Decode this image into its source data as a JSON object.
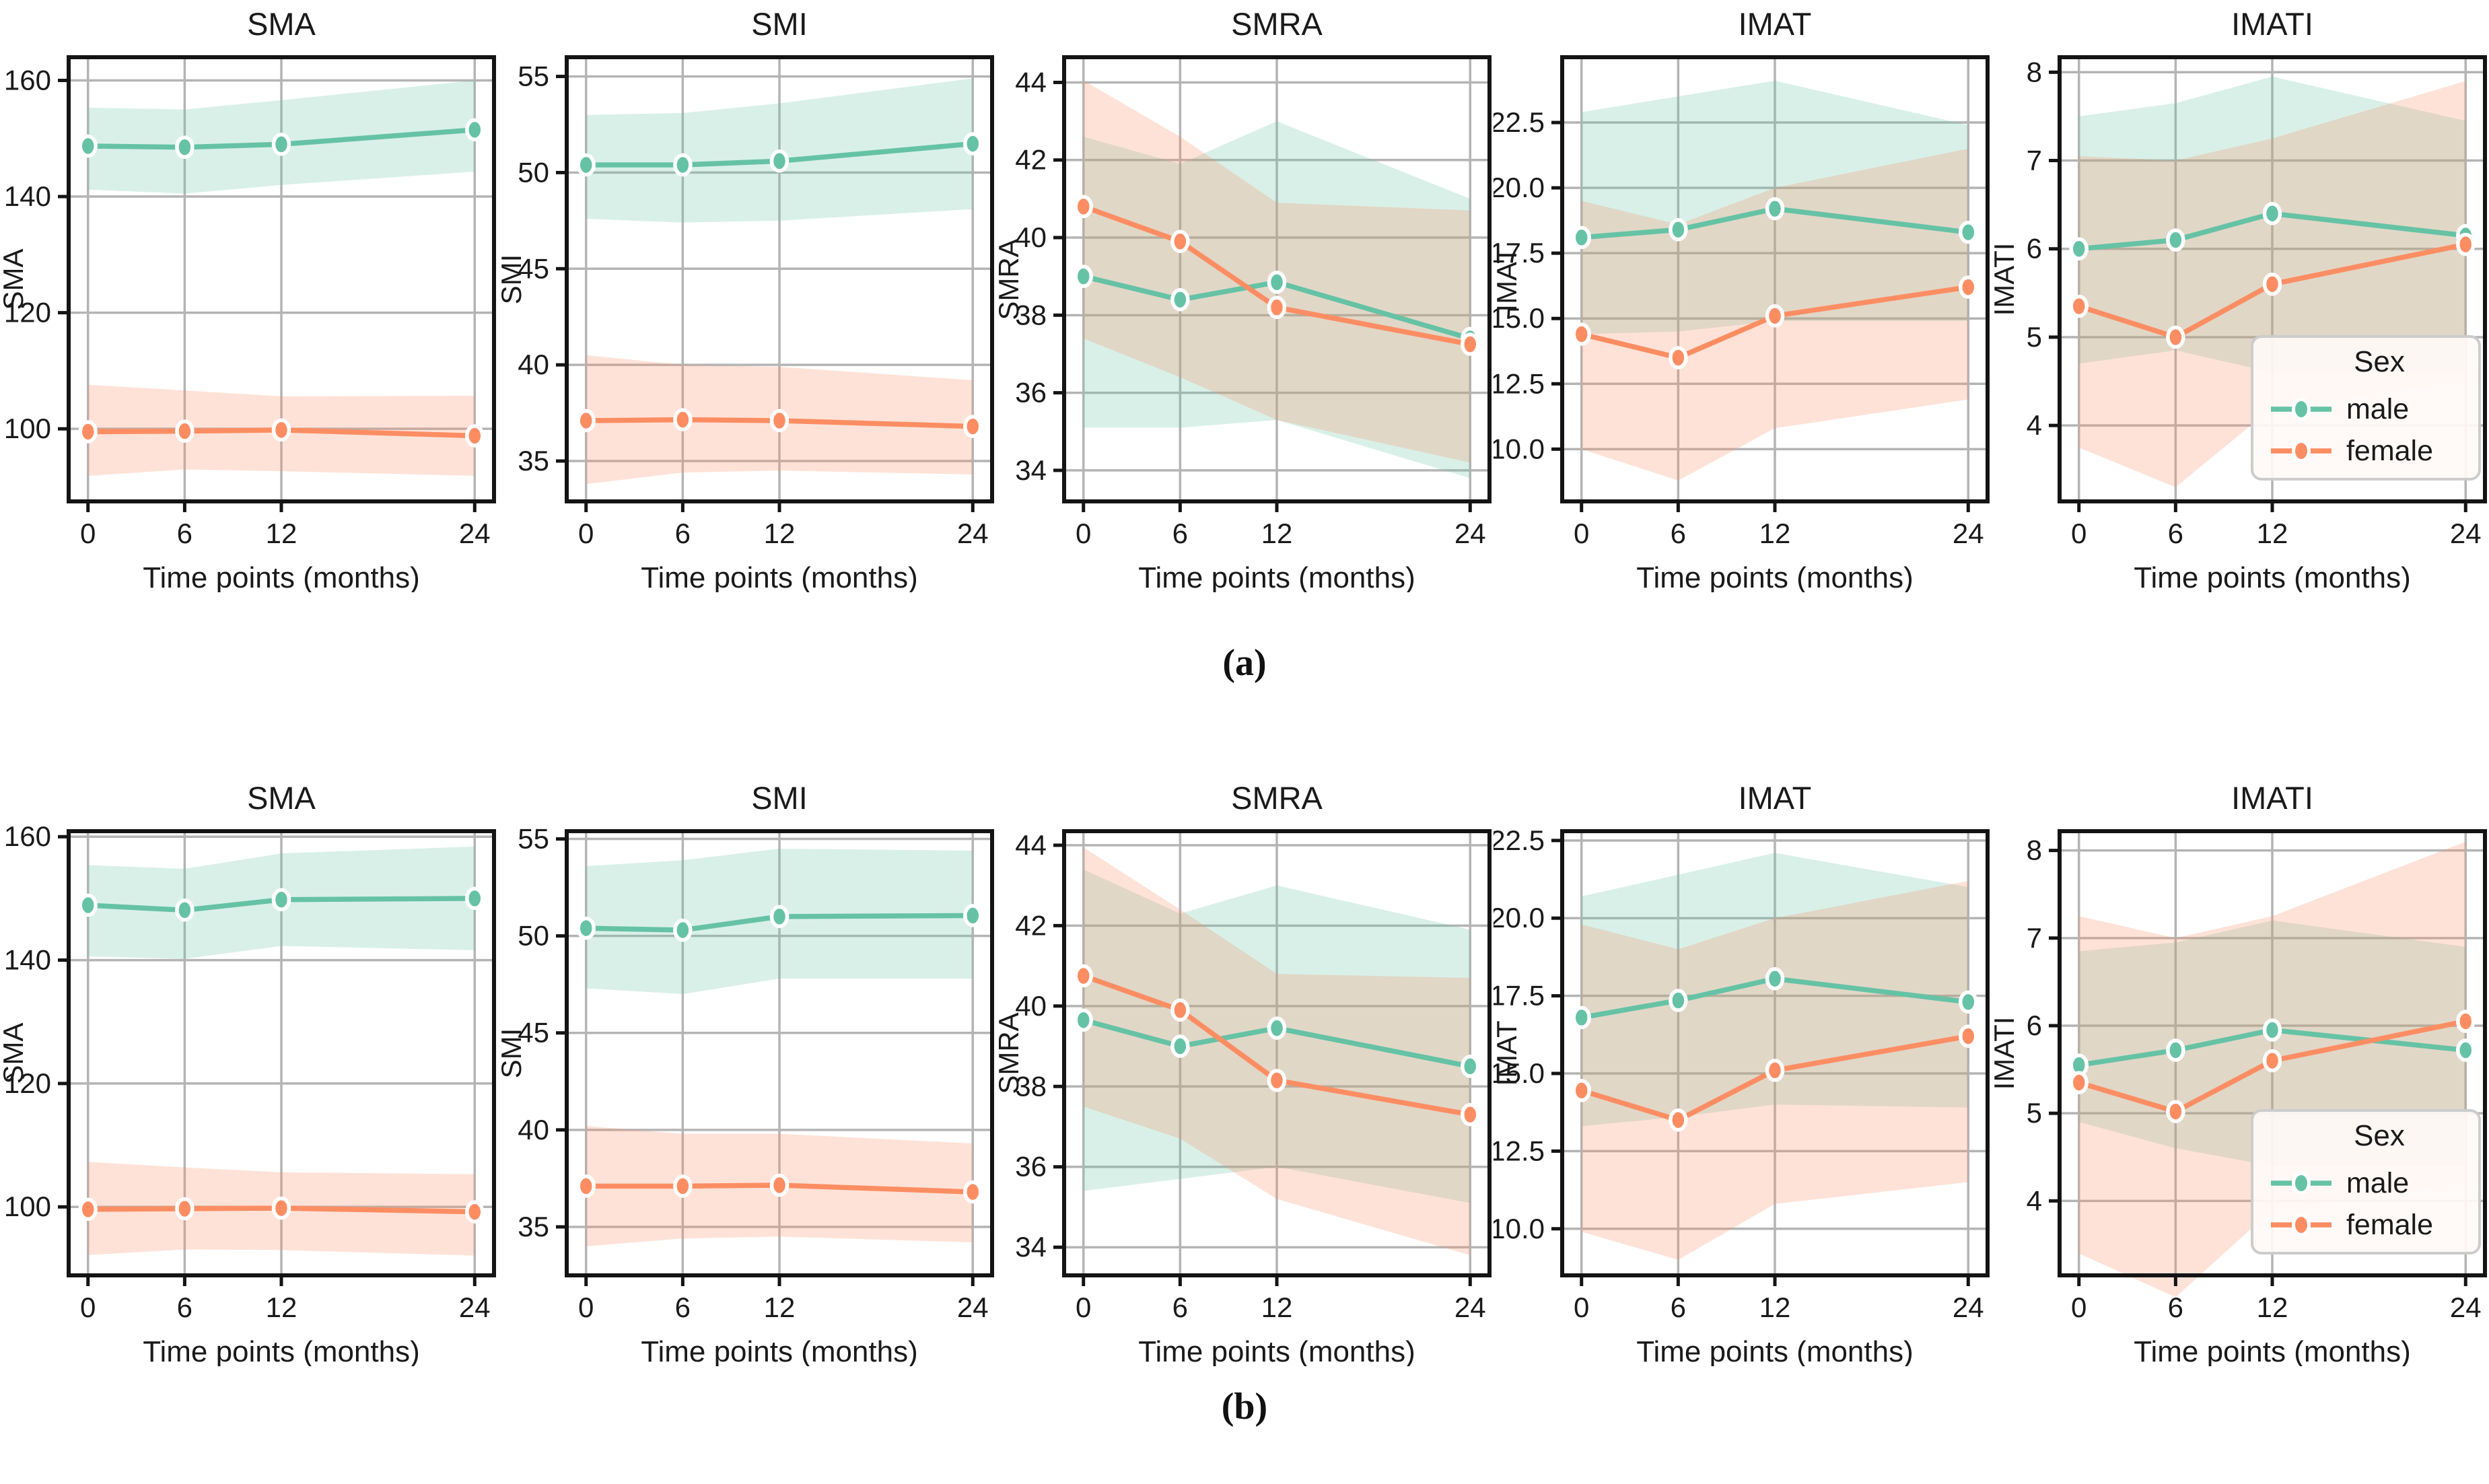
{
  "figure": {
    "panel_a_label": "(a)",
    "panel_b_label": "(b)",
    "x_axis_label": "Time points (months)",
    "x_tick_labels": [
      "0",
      "6",
      "12",
      "24"
    ],
    "legend": {
      "title": "Sex",
      "entries": [
        {
          "label": "male",
          "color": "#66c2a5"
        },
        {
          "label": "female",
          "color": "#fc8d62"
        }
      ]
    },
    "colors": {
      "male": "#66c2a5",
      "female": "#fc8d62",
      "grid": "#b4b4b4",
      "spine": "#141414",
      "legend_bg": "#fffaf7",
      "legend_border": "#cccccc"
    }
  },
  "chart_data": [
    {
      "panel": "a",
      "type": "line",
      "title": "SMA",
      "ylabel": "SMA",
      "x": [
        0,
        6,
        12,
        24
      ],
      "xlim": [
        -1.2,
        25.2
      ],
      "yticks": [
        100,
        120,
        140,
        160
      ],
      "ytick_labels": [
        "100",
        "120",
        "140",
        "160"
      ],
      "ylim": [
        87.5,
        164.0
      ],
      "legend": false,
      "series": [
        {
          "name": "male",
          "values": [
            148.7,
            148.5,
            149.0,
            151.5
          ],
          "band_high": [
            155.3,
            155.0,
            156.6,
            160.0
          ],
          "band_low": [
            141.2,
            140.5,
            142.0,
            144.3
          ]
        },
        {
          "name": "female",
          "values": [
            99.5,
            99.6,
            99.8,
            98.8
          ],
          "band_high": [
            107.6,
            106.6,
            105.6,
            105.7
          ],
          "band_low": [
            91.9,
            93.0,
            92.7,
            91.9
          ]
        }
      ]
    },
    {
      "panel": "a",
      "type": "line",
      "title": "SMI",
      "ylabel": "SMI",
      "x": [
        0,
        6,
        12,
        24
      ],
      "xlim": [
        -1.2,
        25.2
      ],
      "yticks": [
        35,
        40,
        45,
        50,
        55
      ],
      "ytick_labels": [
        "35",
        "40",
        "45",
        "50",
        "55"
      ],
      "ylim": [
        32.9,
        56.0
      ],
      "legend": false,
      "series": [
        {
          "name": "male",
          "values": [
            50.4,
            50.4,
            50.6,
            51.5
          ],
          "band_high": [
            53.0,
            53.1,
            53.6,
            54.9
          ],
          "band_low": [
            47.6,
            47.4,
            47.5,
            48.1
          ]
        },
        {
          "name": "female",
          "values": [
            37.1,
            37.15,
            37.1,
            36.8
          ],
          "band_high": [
            40.5,
            40.0,
            39.9,
            39.2
          ],
          "band_low": [
            33.8,
            34.4,
            34.5,
            34.3
          ]
        }
      ]
    },
    {
      "panel": "a",
      "type": "line",
      "title": "SMRA",
      "ylabel": "SMRA",
      "x": [
        0,
        6,
        12,
        24
      ],
      "xlim": [
        -1.2,
        25.2
      ],
      "yticks": [
        34,
        36,
        38,
        40,
        42,
        44
      ],
      "ytick_labels": [
        "34",
        "36",
        "38",
        "40",
        "42",
        "44"
      ],
      "ylim": [
        33.2,
        44.65
      ],
      "legend": false,
      "series": [
        {
          "name": "male",
          "values": [
            39.0,
            38.4,
            38.85,
            37.4
          ],
          "band_high": [
            42.6,
            41.9,
            43.0,
            41.0
          ],
          "band_low": [
            35.1,
            35.1,
            35.3,
            33.8
          ]
        },
        {
          "name": "female",
          "values": [
            40.8,
            39.9,
            38.2,
            37.25
          ],
          "band_high": [
            44.05,
            42.6,
            40.9,
            40.7
          ],
          "band_low": [
            37.4,
            36.4,
            35.3,
            34.2
          ]
        }
      ]
    },
    {
      "panel": "a",
      "type": "line",
      "title": "IMAT",
      "ylabel": "IMAT",
      "x": [
        0,
        6,
        12,
        24
      ],
      "xlim": [
        -1.2,
        25.2
      ],
      "yticks": [
        10.0,
        12.5,
        15.0,
        17.5,
        20.0,
        22.5
      ],
      "ytick_labels": [
        "10.0",
        "12.5",
        "15.0",
        "17.5",
        "20.0",
        "22.5"
      ],
      "ylim": [
        8.0,
        25.0
      ],
      "legend": false,
      "series": [
        {
          "name": "male",
          "values": [
            18.1,
            18.4,
            19.2,
            18.3
          ],
          "band_high": [
            22.9,
            23.5,
            24.1,
            22.4
          ],
          "band_low": [
            14.4,
            14.5,
            14.9,
            14.9
          ]
        },
        {
          "name": "female",
          "values": [
            14.4,
            13.5,
            15.1,
            16.2
          ],
          "band_high": [
            19.5,
            18.6,
            20.0,
            21.5
          ],
          "band_low": [
            10.0,
            8.8,
            10.8,
            11.9
          ]
        }
      ]
    },
    {
      "panel": "a",
      "type": "line",
      "title": "IMATI",
      "ylabel": "IMATI",
      "x": [
        0,
        6,
        12,
        24
      ],
      "xlim": [
        -1.2,
        25.2
      ],
      "yticks": [
        4,
        5,
        6,
        7,
        8
      ],
      "ytick_labels": [
        "4",
        "5",
        "6",
        "7",
        "8"
      ],
      "ylim": [
        3.14,
        8.17
      ],
      "legend": true,
      "series": [
        {
          "name": "male",
          "values": [
            6.0,
            6.1,
            6.4,
            6.15
          ],
          "band_high": [
            7.5,
            7.65,
            7.95,
            7.45
          ],
          "band_low": [
            4.7,
            4.85,
            4.6,
            4.6
          ]
        },
        {
          "name": "female",
          "values": [
            5.35,
            5.0,
            5.6,
            6.05
          ],
          "band_high": [
            7.05,
            7.0,
            7.25,
            7.9
          ],
          "band_low": [
            3.75,
            3.3,
            4.2,
            4.5
          ]
        }
      ]
    },
    {
      "panel": "b",
      "type": "line",
      "title": "SMA",
      "ylabel": "SMA",
      "x": [
        0,
        6,
        12,
        24
      ],
      "xlim": [
        -1.2,
        25.2
      ],
      "yticks": [
        100,
        120,
        140,
        160
      ],
      "ytick_labels": [
        "100",
        "120",
        "140",
        "160"
      ],
      "ylim": [
        88.9,
        160.9
      ],
      "legend": false,
      "series": [
        {
          "name": "male",
          "values": [
            148.9,
            148.1,
            149.8,
            150.0
          ],
          "band_high": [
            155.4,
            154.8,
            157.3,
            158.4
          ],
          "band_low": [
            140.6,
            140.2,
            142.3,
            141.6
          ]
        },
        {
          "name": "female",
          "values": [
            99.6,
            99.7,
            99.8,
            99.2
          ],
          "band_high": [
            107.3,
            106.4,
            105.6,
            105.3
          ],
          "band_low": [
            92.2,
            93.1,
            93.0,
            92.1
          ]
        }
      ]
    },
    {
      "panel": "b",
      "type": "line",
      "title": "SMI",
      "ylabel": "SMI",
      "x": [
        0,
        6,
        12,
        24
      ],
      "xlim": [
        -1.2,
        25.2
      ],
      "yticks": [
        35,
        40,
        45,
        50,
        55
      ],
      "ytick_labels": [
        "35",
        "40",
        "45",
        "50",
        "55"
      ],
      "ylim": [
        32.5,
        55.4
      ],
      "legend": false,
      "series": [
        {
          "name": "male",
          "values": [
            50.4,
            50.3,
            51.0,
            51.05
          ],
          "band_high": [
            53.6,
            53.9,
            54.5,
            54.4
          ],
          "band_low": [
            47.3,
            47.0,
            47.8,
            47.8
          ]
        },
        {
          "name": "female",
          "values": [
            37.1,
            37.1,
            37.15,
            36.8
          ],
          "band_high": [
            40.2,
            39.8,
            39.8,
            39.3
          ],
          "band_low": [
            34.0,
            34.4,
            34.5,
            34.2
          ]
        }
      ]
    },
    {
      "panel": "b",
      "type": "line",
      "title": "SMRA",
      "ylabel": "SMRA",
      "x": [
        0,
        6,
        12,
        24
      ],
      "xlim": [
        -1.2,
        25.2
      ],
      "yticks": [
        34,
        36,
        38,
        40,
        42,
        44
      ],
      "ytick_labels": [
        "34",
        "36",
        "38",
        "40",
        "42",
        "44"
      ],
      "ylim": [
        33.3,
        44.35
      ],
      "legend": false,
      "series": [
        {
          "name": "male",
          "values": [
            39.65,
            39.0,
            39.45,
            38.5
          ],
          "band_high": [
            43.4,
            42.3,
            43.0,
            41.9
          ],
          "band_low": [
            35.4,
            35.7,
            36.0,
            35.1
          ]
        },
        {
          "name": "female",
          "values": [
            40.75,
            39.9,
            38.15,
            37.3
          ],
          "band_high": [
            43.95,
            42.4,
            40.8,
            40.7
          ],
          "band_low": [
            37.5,
            36.7,
            35.2,
            33.8
          ]
        }
      ]
    },
    {
      "panel": "b",
      "type": "line",
      "title": "IMAT",
      "ylabel": "IMAT",
      "x": [
        0,
        6,
        12,
        24
      ],
      "xlim": [
        -1.2,
        25.2
      ],
      "yticks": [
        10.0,
        12.5,
        15.0,
        17.5,
        20.0,
        22.5
      ],
      "ytick_labels": [
        "10.0",
        "12.5",
        "15.0",
        "17.5",
        "20.0",
        "22.5"
      ],
      "ylim": [
        8.5,
        22.8
      ],
      "legend": false,
      "series": [
        {
          "name": "male",
          "values": [
            16.8,
            17.35,
            18.05,
            17.3
          ],
          "band_high": [
            20.7,
            21.4,
            22.1,
            21.0
          ],
          "band_low": [
            13.3,
            13.6,
            14.0,
            13.9
          ]
        },
        {
          "name": "female",
          "values": [
            14.45,
            13.5,
            15.1,
            16.2
          ],
          "band_high": [
            19.8,
            19.0,
            20.0,
            21.2
          ],
          "band_low": [
            9.9,
            9.0,
            10.8,
            11.5
          ]
        }
      ]
    },
    {
      "panel": "b",
      "type": "line",
      "title": "IMATI",
      "ylabel": "IMATI",
      "x": [
        0,
        6,
        12,
        24
      ],
      "xlim": [
        -1.2,
        25.2
      ],
      "yticks": [
        4,
        5,
        6,
        7,
        8
      ],
      "ytick_labels": [
        "4",
        "5",
        "6",
        "7",
        "8"
      ],
      "ylim": [
        3.15,
        8.22
      ],
      "legend": true,
      "series": [
        {
          "name": "male",
          "values": [
            5.55,
            5.72,
            5.95,
            5.72
          ],
          "band_high": [
            6.85,
            6.95,
            7.2,
            6.9
          ],
          "band_low": [
            4.9,
            4.6,
            4.4,
            4.4
          ]
        },
        {
          "name": "female",
          "values": [
            5.35,
            5.02,
            5.6,
            6.05
          ],
          "band_high": [
            7.25,
            7.0,
            7.25,
            8.1
          ],
          "band_low": [
            3.4,
            2.9,
            3.9,
            4.2
          ]
        }
      ]
    }
  ]
}
